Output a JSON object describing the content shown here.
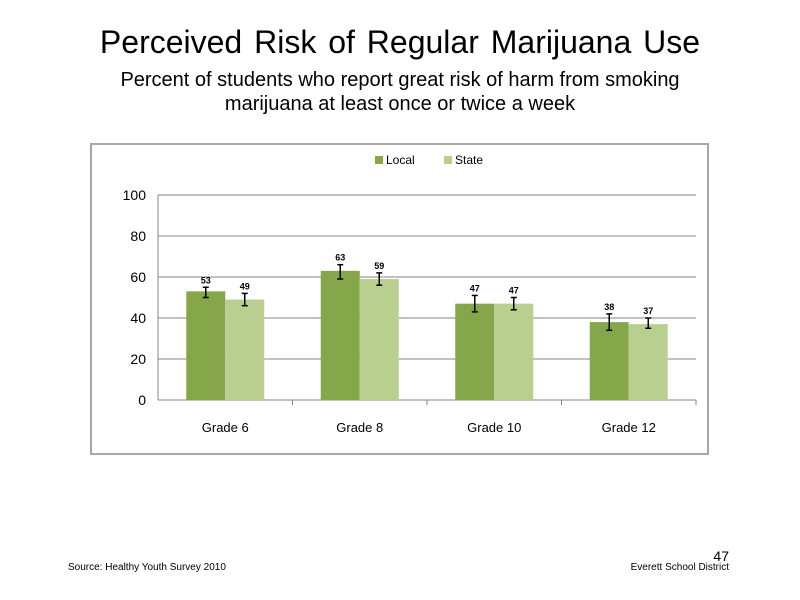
{
  "slide": {
    "title": "Perceived  Risk of Regular  Marijuana  Use",
    "subtitle_line1": "Percent of students  who report great risk  of harm  from smoking",
    "subtitle_line2": "marijuana  at least once or twice a week",
    "source": "Source: Healthy Youth Survey 2010",
    "organization": "Everett School District",
    "page_number": "47"
  },
  "colors": {
    "local": "#86a64a",
    "state": "#b9cf8f",
    "gridline": "#868686",
    "axis": "#868686",
    "error_bar": "#000000"
  },
  "chart_data": {
    "type": "bar",
    "categories": [
      "Grade 6",
      "Grade 8",
      "Grade 10",
      "Grade 12"
    ],
    "series": [
      {
        "name": "Local",
        "values": [
          53,
          63,
          47,
          38
        ],
        "error_low": [
          50,
          59,
          43,
          34
        ],
        "error_high": [
          55,
          66,
          51,
          42
        ]
      },
      {
        "name": "State",
        "values": [
          49,
          59,
          47,
          37
        ],
        "error_low": [
          46,
          56,
          44,
          35
        ],
        "error_high": [
          52,
          62,
          50,
          40
        ]
      }
    ],
    "data_labels": [
      [
        "53",
        "63",
        "47",
        "38"
      ],
      [
        "49",
        "59",
        "47",
        "37"
      ]
    ],
    "yticks": [
      0,
      20,
      40,
      60,
      80,
      100
    ],
    "ylim": [
      0,
      100
    ],
    "grid": true,
    "legend_position": "top-center"
  }
}
